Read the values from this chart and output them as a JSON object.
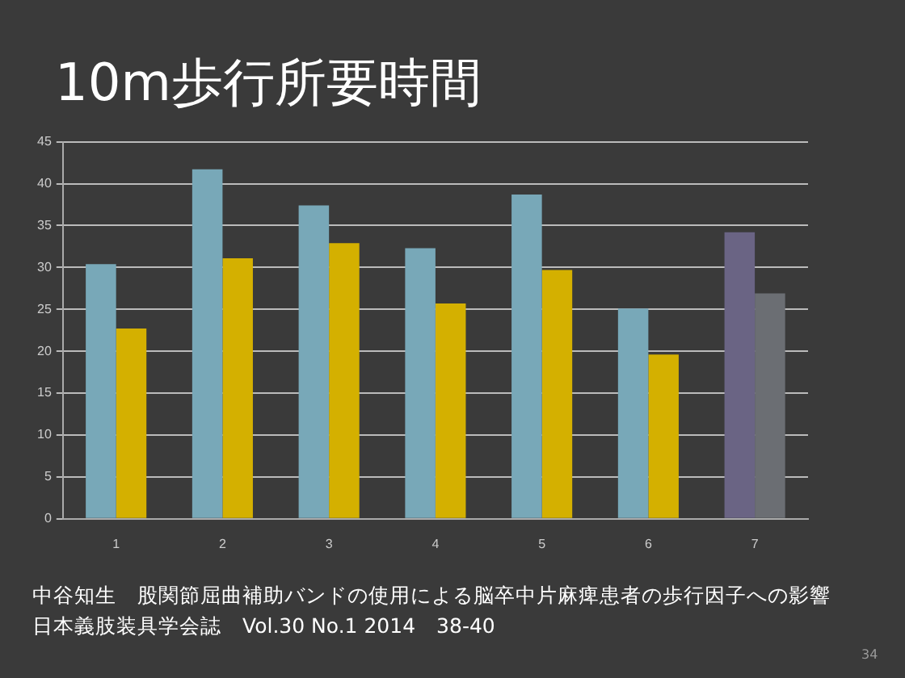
{
  "chart_data": {
    "type": "bar",
    "title": "10m歩行所要時間",
    "categories": [
      "1",
      "2",
      "3",
      "4",
      "5",
      "6",
      "7"
    ],
    "series": [
      {
        "colors": [
          "#78a8b8",
          "#78a8b8",
          "#78a8b8",
          "#78a8b8",
          "#78a8b8",
          "#78a8b8",
          "#6a6484"
        ],
        "values": [
          30.4,
          41.7,
          37.4,
          32.3,
          38.7,
          25.1,
          34.2
        ]
      },
      {
        "colors": [
          "#d4b000",
          "#d4b000",
          "#d4b000",
          "#d4b000",
          "#d4b000",
          "#d4b000",
          "#6b6e73"
        ],
        "values": [
          22.7,
          31.1,
          32.9,
          25.7,
          29.7,
          19.6,
          26.9
        ]
      }
    ],
    "ylim": [
      0,
      45
    ],
    "yticks": [
      0,
      5,
      10,
      15,
      20,
      25,
      30,
      35,
      40,
      45
    ],
    "grid": "y",
    "legend": false,
    "annotations": [
      "中谷知生　股関節屈曲補助バンドの使用による脳卒中片麻痺患者の歩行因子への影響",
      "日本義肢装具学会誌　Vol.30 No.1 2014　38-40",
      "34"
    ]
  }
}
